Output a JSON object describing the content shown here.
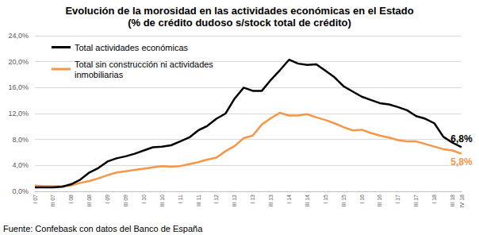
{
  "chart_data": {
    "type": "line",
    "title": "Evolución de la morosidad en las actividades económicas en el Estado",
    "subtitle": "(% de crédito dudoso s/stock total de crédito)",
    "annotations": [
      "Fuente: Confebask con datos del Banco de España"
    ],
    "categories": [
      "I 07",
      null,
      "III 07",
      null,
      "I 08",
      null,
      "III 08",
      null,
      "I 09",
      null,
      "III 09",
      null,
      "I 10",
      null,
      "III 10",
      null,
      "I 11",
      null,
      "III 11",
      null,
      "I 12",
      null,
      "III 12",
      null,
      "I 13",
      null,
      "III 13",
      null,
      "I 14",
      null,
      "III 14",
      null,
      "I 15",
      null,
      "III 15",
      null,
      "I 16",
      null,
      "III 16",
      null,
      "I 17",
      null,
      "III 17",
      null,
      "I 18",
      null,
      "III 18",
      "IV 18"
    ],
    "series": [
      {
        "name": "Total actividades económicas",
        "color": "#000000",
        "values": [
          0.6,
          0.6,
          0.6,
          0.7,
          1.1,
          1.8,
          2.9,
          3.6,
          4.6,
          5.1,
          5.4,
          5.8,
          6.3,
          6.8,
          6.9,
          7.1,
          7.7,
          8.3,
          9.4,
          10.1,
          11.2,
          12.0,
          14.3,
          16.0,
          15.5,
          15.5,
          17.2,
          18.7,
          20.3,
          19.7,
          19.5,
          19.6,
          18.6,
          17.6,
          16.2,
          15.4,
          14.6,
          14.1,
          13.6,
          13.4,
          13.0,
          12.5,
          11.6,
          11.2,
          10.5,
          8.4,
          7.5,
          6.8
        ],
        "value_labels": [
          null,
          null,
          null,
          null,
          null,
          null,
          null,
          null,
          null,
          null,
          null,
          null,
          null,
          null,
          null,
          null,
          null,
          null,
          null,
          null,
          null,
          null,
          null,
          null,
          null,
          null,
          null,
          null,
          null,
          null,
          null,
          null,
          null,
          null,
          null,
          null,
          null,
          null,
          null,
          null,
          null,
          null,
          null,
          null,
          null,
          null,
          null,
          "6,8%"
        ]
      },
      {
        "name": "Total sin construcción ni actividades inmobiliarias",
        "color": "#f79646",
        "values": [
          0.9,
          0.8,
          0.8,
          0.8,
          0.9,
          1.3,
          1.6,
          2.0,
          2.5,
          2.9,
          3.1,
          3.3,
          3.5,
          3.7,
          3.9,
          3.8,
          3.9,
          4.2,
          4.5,
          4.9,
          5.2,
          6.2,
          7.0,
          8.2,
          8.6,
          10.3,
          11.3,
          12.1,
          11.7,
          11.7,
          11.9,
          11.4,
          11.0,
          10.5,
          9.9,
          9.4,
          9.5,
          9.0,
          8.6,
          8.3,
          7.9,
          7.7,
          7.7,
          7.3,
          6.9,
          6.5,
          6.3,
          5.8
        ],
        "value_labels": [
          null,
          null,
          null,
          null,
          null,
          null,
          null,
          null,
          null,
          null,
          null,
          null,
          null,
          null,
          null,
          null,
          null,
          null,
          null,
          null,
          null,
          null,
          null,
          null,
          null,
          null,
          null,
          null,
          null,
          null,
          null,
          null,
          null,
          null,
          null,
          null,
          null,
          null,
          null,
          null,
          null,
          null,
          null,
          null,
          null,
          null,
          null,
          "5,8%"
        ]
      }
    ],
    "ylim": [
      0,
      24
    ],
    "yticks": [
      {
        "value": 0,
        "label": "0,0%"
      },
      {
        "value": 4,
        "label": "4,0%"
      },
      {
        "value": 8,
        "label": "8,0%"
      },
      {
        "value": 12,
        "label": "12,0%"
      },
      {
        "value": 16,
        "label": "16,0%"
      },
      {
        "value": 20,
        "label": "20,0%"
      },
      {
        "value": 24,
        "label": "24,0%"
      }
    ],
    "grid": true,
    "legend": "top-left"
  }
}
